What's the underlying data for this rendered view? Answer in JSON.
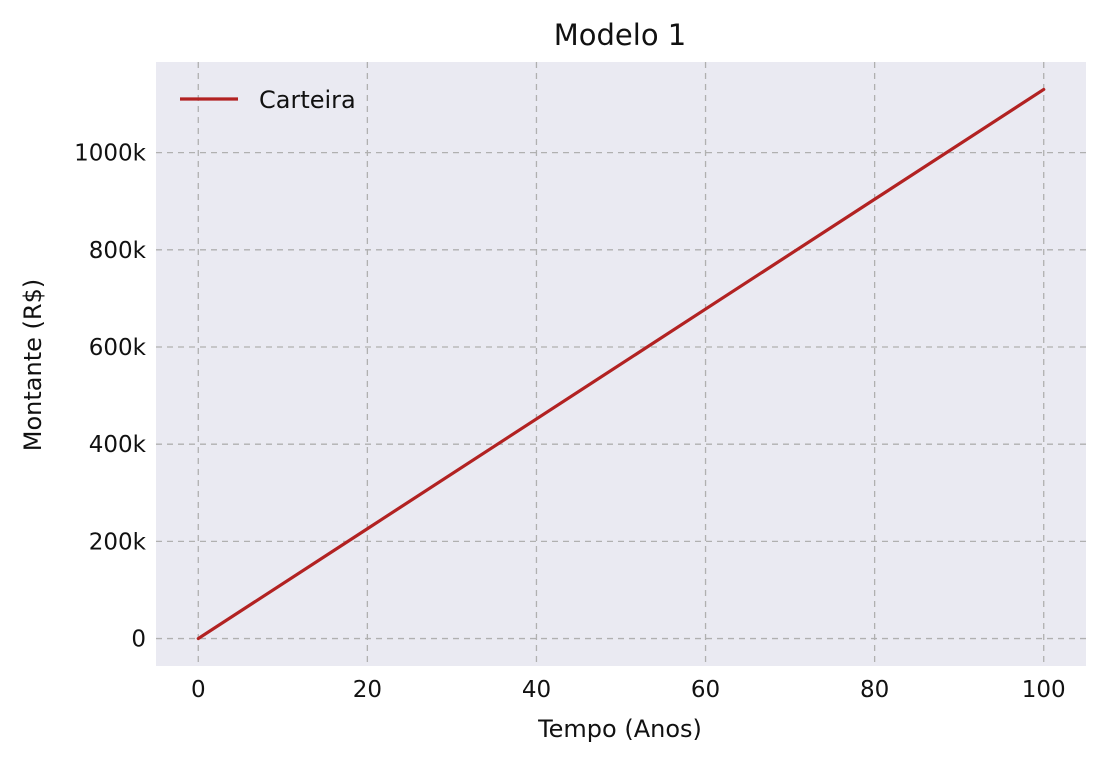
{
  "chart_data": {
    "type": "line",
    "title": "Modelo 1",
    "xlabel": "Tempo (Anos)",
    "ylabel": "Montante (R$)",
    "xlim": [
      -5,
      105
    ],
    "ylim": [
      -56500,
      1186500
    ],
    "x_ticks": [
      {
        "value": 0,
        "label": "0"
      },
      {
        "value": 20,
        "label": "20"
      },
      {
        "value": 40,
        "label": "40"
      },
      {
        "value": 60,
        "label": "60"
      },
      {
        "value": 80,
        "label": "80"
      },
      {
        "value": 100,
        "label": "100"
      }
    ],
    "y_ticks": [
      {
        "value": 0,
        "label": "0"
      },
      {
        "value": 200000,
        "label": "200k"
      },
      {
        "value": 400000,
        "label": "400k"
      },
      {
        "value": 600000,
        "label": "600k"
      },
      {
        "value": 800000,
        "label": "800k"
      },
      {
        "value": 1000000,
        "label": "1000k"
      }
    ],
    "grid": true,
    "legend_position": "upper-left",
    "series": [
      {
        "name": "Carteira",
        "color": "#b22222",
        "x": [
          0,
          20,
          40,
          60,
          80,
          100
        ],
        "y": [
          0,
          226000,
          452000,
          678000,
          904000,
          1130000
        ]
      }
    ]
  },
  "colors": {
    "plot_background": "#eaeaf2",
    "grid": "#b0b0b0"
  }
}
